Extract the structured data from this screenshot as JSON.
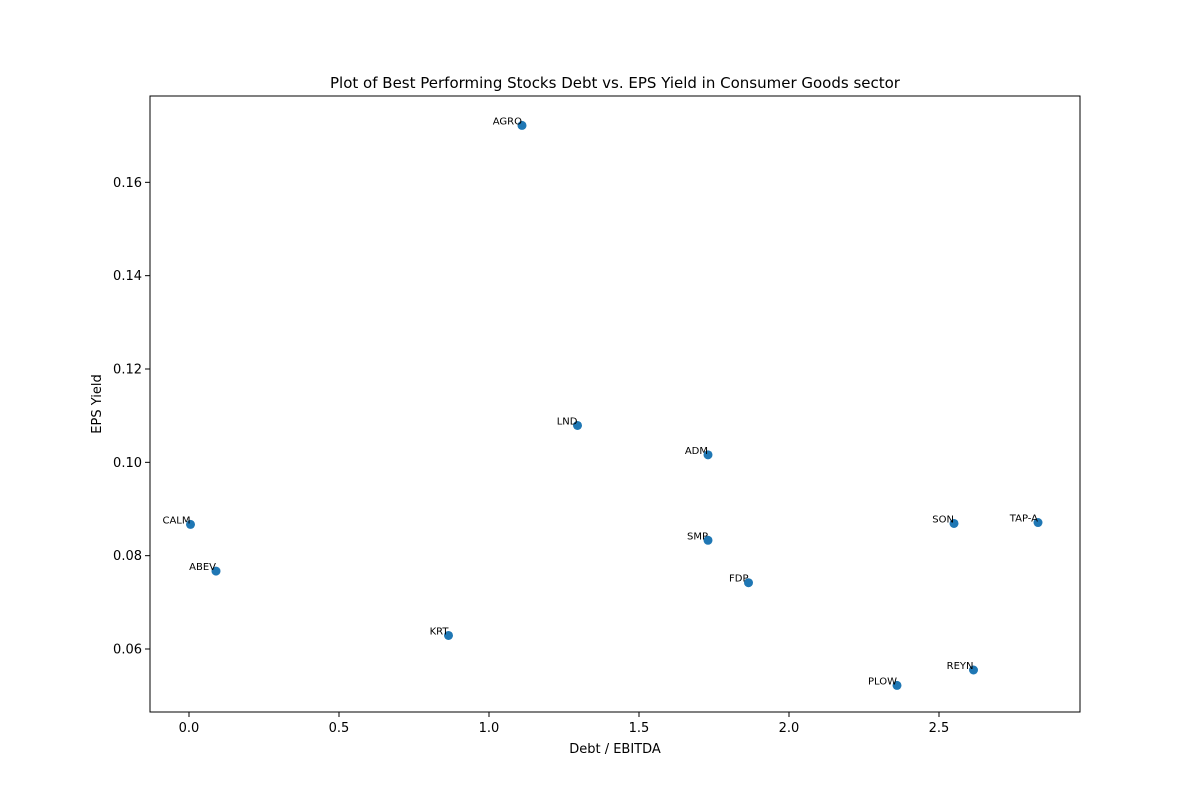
{
  "chart_data": {
    "type": "scatter",
    "title": "Plot of Best Performing Stocks Debt vs. EPS Yield in Consumer Goods sector",
    "xlabel": "Debt / EBITDA",
    "ylabel": "EPS Yield",
    "xlim": [
      -0.13,
      2.97
    ],
    "ylim": [
      0.0465,
      0.1785
    ],
    "xticks": [
      0.0,
      0.5,
      1.0,
      1.5,
      2.0,
      2.5
    ],
    "xtick_labels": [
      "0.0",
      "0.5",
      "1.0",
      "1.5",
      "2.0",
      "2.5"
    ],
    "yticks": [
      0.06,
      0.08,
      0.1,
      0.12,
      0.14,
      0.16
    ],
    "ytick_labels": [
      "0.06",
      "0.08",
      "0.10",
      "0.12",
      "0.14",
      "0.16"
    ],
    "grid": false,
    "marker_color": "#1f77b4",
    "points": [
      {
        "label": "AGRO",
        "x": 1.11,
        "y": 0.1722
      },
      {
        "label": "LND",
        "x": 1.295,
        "y": 0.1079
      },
      {
        "label": "ADM",
        "x": 1.73,
        "y": 0.1016
      },
      {
        "label": "CALM",
        "x": 0.005,
        "y": 0.0867
      },
      {
        "label": "SON",
        "x": 2.55,
        "y": 0.0869
      },
      {
        "label": "TAP-A",
        "x": 2.83,
        "y": 0.0871
      },
      {
        "label": "SMP",
        "x": 1.73,
        "y": 0.0833
      },
      {
        "label": "ABEV",
        "x": 0.09,
        "y": 0.0767
      },
      {
        "label": "FDP",
        "x": 1.865,
        "y": 0.0742
      },
      {
        "label": "KRT",
        "x": 0.865,
        "y": 0.0629
      },
      {
        "label": "REYN",
        "x": 2.615,
        "y": 0.0555
      },
      {
        "label": "PLOW",
        "x": 2.36,
        "y": 0.0522
      }
    ]
  }
}
